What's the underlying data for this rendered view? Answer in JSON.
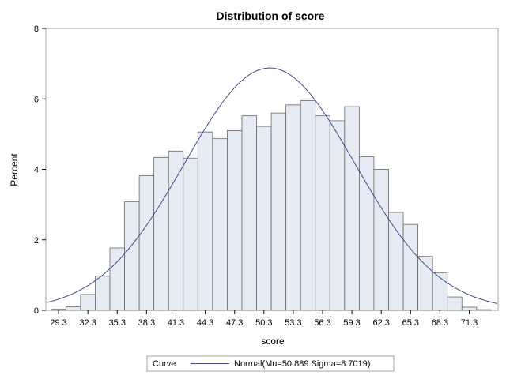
{
  "chart_data": {
    "type": "bar",
    "title": "Distribution of score",
    "xlabel": "score",
    "ylabel": "Percent",
    "ylim": [
      0,
      8
    ],
    "y_ticks": [
      0,
      2,
      4,
      6,
      8
    ],
    "x_tick_labels": [
      "29.3",
      "32.3",
      "35.3",
      "38.3",
      "41.3",
      "44.3",
      "47.3",
      "50.3",
      "53.3",
      "56.3",
      "59.3",
      "62.3",
      "65.3",
      "68.3",
      "71.3"
    ],
    "bin_width": 1.5,
    "bin_midpoints": [
      29.3,
      30.8,
      32.3,
      33.8,
      35.3,
      36.8,
      38.3,
      39.8,
      41.3,
      42.8,
      44.3,
      45.8,
      47.3,
      48.8,
      50.3,
      51.8,
      53.3,
      54.8,
      56.3,
      57.8,
      59.3,
      60.8,
      62.3,
      63.8,
      65.3,
      66.8,
      68.3,
      69.8,
      71.3,
      72.8
    ],
    "values": [
      0.03,
      0.1,
      0.45,
      0.97,
      1.77,
      3.08,
      3.82,
      4.34,
      4.52,
      4.32,
      5.06,
      4.87,
      5.1,
      5.52,
      5.22,
      5.6,
      5.83,
      5.95,
      5.52,
      5.38,
      5.78,
      4.36,
      4.0,
      2.78,
      2.44,
      1.53,
      1.07,
      0.38,
      0.09,
      0.02
    ],
    "curve": {
      "name": "Normal(Mu=50.889 Sigma=8.7019)",
      "mu": 50.889,
      "sigma": 8.7019
    },
    "legend": {
      "title": "Curve",
      "position": "bottom"
    },
    "colors": {
      "bar_fill": "#e6eaf2",
      "bar_stroke": "#666666",
      "curve": "#3f4a8a",
      "frame": "#a0a0a0"
    }
  }
}
